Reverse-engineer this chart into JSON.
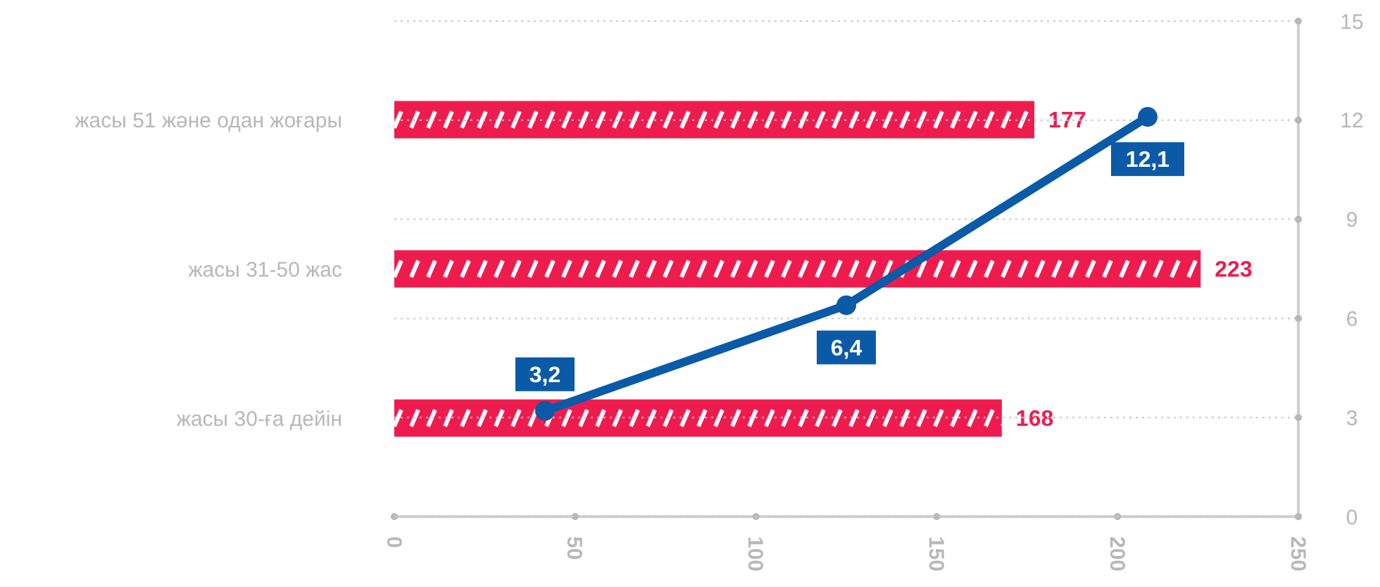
{
  "chart_data": [
    {
      "type": "bar",
      "orientation": "horizontal",
      "categories": [
        "жасы 51 және одан жоғары",
        "жасы 31-50 жас",
        "жасы 30-ға дейін"
      ],
      "xlim": [
        0,
        250
      ],
      "xticks": [
        0,
        50,
        100,
        150,
        200,
        250
      ],
      "color": "#ee1c4e",
      "values": [
        177,
        223,
        168
      ],
      "value_labels": [
        "177",
        "223",
        "168"
      ]
    },
    {
      "type": "line",
      "categories": [
        null,
        null,
        null
      ],
      "ylim": [
        0,
        15
      ],
      "yticks": [
        0,
        3,
        6,
        9,
        12,
        15
      ],
      "grid": "y",
      "tick_labels": "y",
      "marker": "circle",
      "color": "#0a5aa8",
      "values": [
        3.2,
        6.4,
        12.1
      ],
      "value_labels": [
        "3,2",
        "6,4",
        "12,1"
      ]
    }
  ]
}
